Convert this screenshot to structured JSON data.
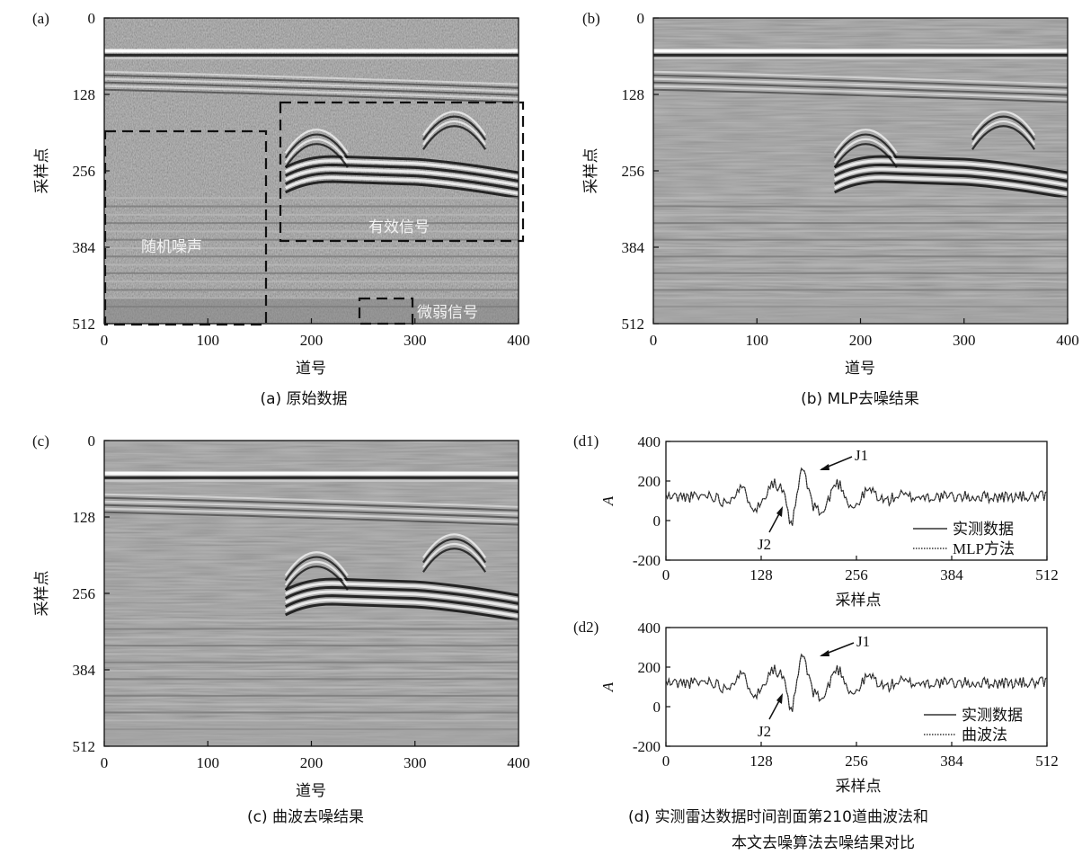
{
  "panels": {
    "a": {
      "tag": "(a)",
      "caption": "(a) 原始数据",
      "xlabel": "道号",
      "ylabel": "采样点",
      "xticks": [
        "0",
        "100",
        "200",
        "300",
        "400"
      ],
      "yticks": [
        "0",
        "128",
        "256",
        "384",
        "512"
      ],
      "annotations": [
        "随机噪声",
        "有效信号",
        "微弱信号"
      ]
    },
    "b": {
      "tag": "(b)",
      "caption": "(b) MLP去噪结果",
      "xlabel": "道号",
      "ylabel": "采样点",
      "xticks": [
        "0",
        "100",
        "200",
        "300",
        "400"
      ],
      "yticks": [
        "0",
        "128",
        "256",
        "384",
        "512"
      ]
    },
    "c": {
      "tag": "(c)",
      "caption": "(c) 曲波去噪结果",
      "xlabel": "道号",
      "ylabel": "采样点",
      "xticks": [
        "0",
        "100",
        "200",
        "300",
        "400"
      ],
      "yticks": [
        "0",
        "128",
        "256",
        "384",
        "512"
      ]
    },
    "d1": {
      "tag": "(d1)",
      "xlabel": "采样点",
      "ylabel": "A",
      "xticks": [
        "0",
        "128",
        "256",
        "384",
        "512"
      ],
      "yticks": [
        "400",
        "200",
        "0",
        "-200"
      ],
      "legend": [
        "实测数据",
        "MLP方法"
      ],
      "markers": [
        "J1",
        "J2"
      ]
    },
    "d2": {
      "tag": "(d2)",
      "xlabel": "采样点",
      "ylabel": "A",
      "xticks": [
        "0",
        "128",
        "256",
        "384",
        "512"
      ],
      "yticks": [
        "400",
        "200",
        "0",
        "-200"
      ],
      "legend": [
        "实测数据",
        "曲波法"
      ],
      "markers": [
        "J1",
        "J2"
      ]
    },
    "d_caption": [
      "(d) 实测雷达数据时间剖面第210道曲波法和",
      "本文去噪算法去噪结果对比"
    ]
  },
  "chart_data": [
    {
      "type": "heatmap",
      "panel": "a",
      "xlabel": "道号",
      "ylabel": "采样点",
      "xlim": [
        0,
        400
      ],
      "ylim": [
        512,
        0
      ],
      "annotation_boxes": [
        {
          "label": "随机噪声",
          "x": [
            0,
            157
          ],
          "y": [
            190,
            512
          ]
        },
        {
          "label": "有效信号",
          "x": [
            170,
            405
          ],
          "y": [
            140,
            372
          ]
        },
        {
          "label": "微弱信号",
          "x": [
            246,
            295
          ],
          "y": [
            468,
            512
          ]
        }
      ]
    },
    {
      "type": "heatmap",
      "panel": "b",
      "xlabel": "道号",
      "ylabel": "采样点",
      "xlim": [
        0,
        400
      ],
      "ylim": [
        512,
        0
      ]
    },
    {
      "type": "heatmap",
      "panel": "c",
      "xlabel": "道号",
      "ylabel": "采样点",
      "xlim": [
        0,
        400
      ],
      "ylim": [
        512,
        0
      ]
    },
    {
      "type": "line",
      "panel": "d1",
      "xlabel": "采样点",
      "ylabel": "A",
      "xlim": [
        0,
        512
      ],
      "ylim": [
        -200,
        400
      ],
      "series": [
        {
          "name": "实测数据"
        },
        {
          "name": "MLP方法"
        }
      ],
      "markers": [
        {
          "label": "J1",
          "x": 180,
          "y": 265
        },
        {
          "label": "J2",
          "x": 145,
          "y": 95
        }
      ]
    },
    {
      "type": "line",
      "panel": "d2",
      "xlabel": "采样点",
      "ylabel": "A",
      "xlim": [
        0,
        512
      ],
      "ylim": [
        -200,
        400
      ],
      "series": [
        {
          "name": "实测数据"
        },
        {
          "name": "曲波法"
        }
      ],
      "markers": [
        {
          "label": "J1",
          "x": 180,
          "y": 265
        },
        {
          "label": "J2",
          "x": 145,
          "y": 95
        }
      ]
    }
  ]
}
